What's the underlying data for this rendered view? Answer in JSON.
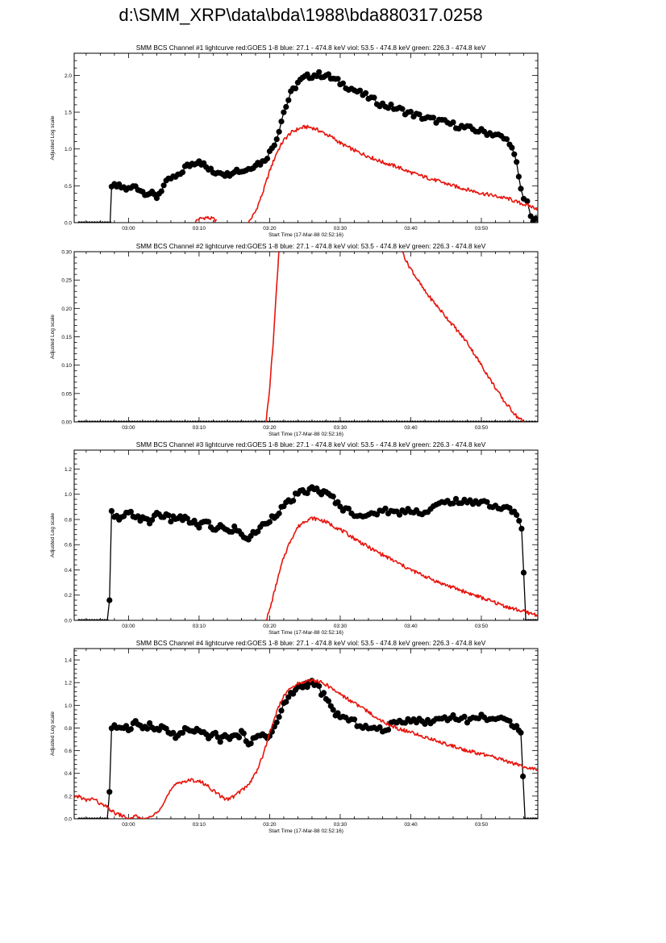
{
  "page": {
    "title": "d:\\SMM_XRP\\data\\bda\\1988\\bda880317.0258"
  },
  "colors": {
    "black_series": "#000000",
    "red_series": "#e8140c",
    "axis": "#000000"
  },
  "chart_data": [
    {
      "type": "line",
      "title": "SMM BCS Channel #1 lightcurve  red:GOES 1-8  blue: 27.1 - 474.8 keV  viol: 53.5 - 474.8 keV  green: 226.3 - 474.8 keV",
      "xlabel": "Start Time (17-Mar-88 02:52:16)",
      "ylabel": "Adjusted Log scale",
      "xlim": [
        52.3,
        118.0
      ],
      "ylim": [
        0,
        2.3
      ],
      "xticks": [
        {
          "value": 60,
          "label": "03:00"
        },
        {
          "value": 70,
          "label": "03:10"
        },
        {
          "value": 80,
          "label": "03:20"
        },
        {
          "value": 90,
          "label": "03:30"
        },
        {
          "value": 100,
          "label": "03:40"
        },
        {
          "value": 110,
          "label": "03:50"
        }
      ],
      "yticks": [
        {
          "value": 0,
          "label": "0.0"
        },
        {
          "value": 0.5,
          "label": "0.5"
        },
        {
          "value": 1.0,
          "label": "1.0"
        },
        {
          "value": 1.5,
          "label": "1.5"
        },
        {
          "value": 2.0,
          "label": "2.0"
        }
      ],
      "series": [
        {
          "name": "BCS Channel #1 (black dots)",
          "color": "black",
          "markers": true,
          "x": [
            53,
            57.4,
            57.6,
            58,
            59,
            60,
            61,
            62,
            63,
            64,
            65,
            66,
            67,
            68,
            69,
            70,
            71,
            72,
            73,
            74,
            75,
            76,
            77,
            78,
            79,
            80,
            81,
            82,
            83,
            84,
            85,
            86,
            87,
            88,
            89,
            90,
            92,
            94,
            96,
            98,
            100,
            102,
            104,
            106,
            108,
            110,
            112,
            114,
            115,
            115.6,
            116,
            116.5,
            117,
            118
          ],
          "y": [
            0.0,
            0.0,
            0.45,
            0.5,
            0.48,
            0.45,
            0.5,
            0.42,
            0.4,
            0.35,
            0.5,
            0.6,
            0.62,
            0.75,
            0.8,
            0.85,
            0.75,
            0.68,
            0.7,
            0.65,
            0.72,
            0.7,
            0.73,
            0.8,
            0.82,
            0.95,
            1.15,
            1.5,
            1.75,
            1.9,
            1.97,
            2.0,
            2.01,
            2.0,
            1.95,
            1.9,
            1.8,
            1.7,
            1.6,
            1.55,
            1.48,
            1.42,
            1.38,
            1.33,
            1.28,
            1.24,
            1.2,
            1.1,
            0.8,
            0.45,
            0.35,
            0.3,
            0.05,
            0.0
          ]
        },
        {
          "name": "GOES 1-8 (red)",
          "color": "red",
          "markers": false,
          "x": [
            69.5,
            70,
            71,
            72,
            72.5,
            null,
            77,
            78,
            79,
            80,
            81,
            82,
            83,
            84,
            85,
            86,
            87,
            88,
            89,
            90,
            92,
            94,
            96,
            98,
            100,
            102,
            104,
            106,
            108,
            110,
            112,
            114,
            115,
            116,
            117,
            118
          ],
          "y": [
            0.02,
            0.05,
            0.07,
            0.05,
            0.02,
            null,
            0.0,
            0.15,
            0.4,
            0.7,
            0.95,
            1.12,
            1.22,
            1.27,
            1.3,
            1.29,
            1.25,
            1.2,
            1.15,
            1.08,
            0.98,
            0.9,
            0.82,
            0.76,
            0.68,
            0.62,
            0.56,
            0.5,
            0.45,
            0.4,
            0.36,
            0.32,
            0.28,
            0.25,
            0.22,
            0.19
          ]
        }
      ]
    },
    {
      "type": "line",
      "title": "SMM BCS Channel #2 lightcurve  red:GOES 1-8  blue: 27.1 - 474.8 keV  viol: 53.5 - 474.8 keV  green: 226.3 - 474.8 keV",
      "xlabel": "Start Time (17-Mar-88 02:52:16)",
      "ylabel": "Adjusted Log scale",
      "xlim": [
        52.3,
        118.0
      ],
      "ylim": [
        0,
        0.3
      ],
      "xticks": [
        {
          "value": 60,
          "label": "03:00"
        },
        {
          "value": 70,
          "label": "03:10"
        },
        {
          "value": 80,
          "label": "03:20"
        },
        {
          "value": 90,
          "label": "03:30"
        },
        {
          "value": 100,
          "label": "03:40"
        },
        {
          "value": 110,
          "label": "03:50"
        }
      ],
      "yticks": [
        {
          "value": 0,
          "label": "0.00"
        },
        {
          "value": 0.05,
          "label": "0.05"
        },
        {
          "value": 0.1,
          "label": "0.10"
        },
        {
          "value": 0.15,
          "label": "0.15"
        },
        {
          "value": 0.2,
          "label": "0.20"
        },
        {
          "value": 0.25,
          "label": "0.25"
        },
        {
          "value": 0.3,
          "label": "0.30"
        }
      ],
      "series": [
        {
          "name": "BCS Channel #2 (black dots)",
          "color": "black",
          "markers": true,
          "x": [
            53,
            56,
            59,
            62,
            65,
            68,
            71,
            74,
            77,
            80,
            83,
            86,
            89,
            92,
            95,
            98,
            101,
            104,
            107,
            110,
            113,
            116,
            118
          ],
          "y": [
            0,
            0,
            0,
            0,
            0,
            0,
            0,
            0,
            0,
            0,
            0,
            0,
            0,
            0,
            0,
            0,
            0,
            0,
            0,
            0,
            0,
            0,
            0
          ]
        },
        {
          "name": "GOES 1-8 (red)",
          "color": "red",
          "markers": false,
          "x": [
            79.5,
            80,
            80.5,
            81,
            81.3,
            null,
            98.8,
            99.5,
            100,
            101,
            102,
            103,
            104,
            105,
            106,
            107,
            108,
            109,
            110,
            111,
            112,
            113,
            114,
            115,
            116
          ],
          "y": [
            0.0,
            0.06,
            0.14,
            0.24,
            0.3,
            null,
            0.3,
            0.28,
            0.27,
            0.25,
            0.23,
            0.215,
            0.2,
            0.185,
            0.17,
            0.155,
            0.14,
            0.12,
            0.1,
            0.08,
            0.06,
            0.04,
            0.025,
            0.01,
            0.0
          ]
        }
      ]
    },
    {
      "type": "line",
      "title": "SMM BCS Channel #3 lightcurve  red:GOES 1-8  blue: 27.1 - 474.8 keV  viol: 53.5 - 474.8 keV  green: 226.3 - 474.8 keV",
      "xlabel": "Start Time (17-Mar-88 02:52:16)",
      "ylabel": "Adjusted Log scale",
      "xlim": [
        52.3,
        118.0
      ],
      "ylim": [
        0,
        1.35
      ],
      "xticks": [
        {
          "value": 60,
          "label": "03:00"
        },
        {
          "value": 70,
          "label": "03:10"
        },
        {
          "value": 80,
          "label": "03:20"
        },
        {
          "value": 90,
          "label": "03:30"
        },
        {
          "value": 100,
          "label": "03:40"
        },
        {
          "value": 110,
          "label": "03:50"
        }
      ],
      "yticks": [
        {
          "value": 0,
          "label": "0.0"
        },
        {
          "value": 0.2,
          "label": "0.2"
        },
        {
          "value": 0.4,
          "label": "0.4"
        },
        {
          "value": 0.6,
          "label": "0.6"
        },
        {
          "value": 0.8,
          "label": "0.8"
        },
        {
          "value": 1.0,
          "label": "1.0"
        },
        {
          "value": 1.2,
          "label": "1.2"
        }
      ],
      "series": [
        {
          "name": "BCS Channel #3 (black dots)",
          "color": "black",
          "markers": true,
          "x": [
            53,
            57,
            57.3,
            57.6,
            58,
            59,
            60,
            61,
            62,
            63,
            64,
            65,
            66,
            67,
            68,
            69,
            70,
            71,
            72,
            73,
            74,
            75,
            76,
            77,
            78,
            79,
            80,
            81,
            82,
            83,
            84,
            85,
            86,
            87,
            88,
            89,
            90,
            92,
            94,
            96,
            98,
            100,
            102,
            104,
            106,
            108,
            110,
            112,
            114,
            115,
            115.7,
            116.3,
            117,
            118
          ],
          "y": [
            0.0,
            0.0,
            0.15,
            0.85,
            0.82,
            0.8,
            0.85,
            0.83,
            0.8,
            0.78,
            0.85,
            0.83,
            0.8,
            0.82,
            0.8,
            0.78,
            0.75,
            0.78,
            0.72,
            0.75,
            0.7,
            0.73,
            0.68,
            0.65,
            0.7,
            0.75,
            0.8,
            0.85,
            0.9,
            0.95,
            1.0,
            1.02,
            1.04,
            1.03,
            1.0,
            0.97,
            0.9,
            0.85,
            0.82,
            0.88,
            0.85,
            0.88,
            0.85,
            0.92,
            0.95,
            0.93,
            0.95,
            0.9,
            0.88,
            0.85,
            0.72,
            0.0,
            0.0,
            0.0
          ]
        },
        {
          "name": "GOES 1-8 (red)",
          "color": "red",
          "markers": false,
          "x": [
            79.5,
            80,
            81,
            82,
            83,
            84,
            85,
            86,
            87,
            88,
            89,
            90,
            92,
            94,
            96,
            98,
            100,
            102,
            104,
            106,
            108,
            110,
            112,
            114,
            116,
            118
          ],
          "y": [
            0.0,
            0.08,
            0.3,
            0.5,
            0.64,
            0.74,
            0.79,
            0.81,
            0.8,
            0.78,
            0.75,
            0.72,
            0.65,
            0.58,
            0.52,
            0.46,
            0.4,
            0.35,
            0.3,
            0.26,
            0.22,
            0.18,
            0.14,
            0.1,
            0.07,
            0.04
          ]
        }
      ]
    },
    {
      "type": "line",
      "title": "SMM BCS Channel #4 lightcurve  red:GOES 1-8  blue: 27.1 - 474.8 keV  viol: 53.5 - 474.8 keV  green: 226.3 - 474.8 keV",
      "xlabel": "Start Time (17-Mar-88 02:52:16)",
      "ylabel": "Adjusted Log scale",
      "xlim": [
        52.3,
        118.0
      ],
      "ylim": [
        0,
        1.5
      ],
      "xticks": [
        {
          "value": 60,
          "label": "03:00"
        },
        {
          "value": 70,
          "label": "03:10"
        },
        {
          "value": 80,
          "label": "03:20"
        },
        {
          "value": 90,
          "label": "03:30"
        },
        {
          "value": 100,
          "label": "03:40"
        },
        {
          "value": 110,
          "label": "03:50"
        }
      ],
      "yticks": [
        {
          "value": 0,
          "label": "0.0"
        },
        {
          "value": 0.2,
          "label": "0.2"
        },
        {
          "value": 0.4,
          "label": "0.4"
        },
        {
          "value": 0.6,
          "label": "0.6"
        },
        {
          "value": 0.8,
          "label": "0.8"
        },
        {
          "value": 1.0,
          "label": "1.0"
        },
        {
          "value": 1.2,
          "label": "1.2"
        },
        {
          "value": 1.4,
          "label": "1.4"
        }
      ],
      "series": [
        {
          "name": "BCS Channel #4 (black dots)",
          "color": "black",
          "markers": true,
          "x": [
            53,
            57,
            57.3,
            57.6,
            58,
            59,
            60,
            61,
            62,
            63,
            64,
            65,
            66,
            67,
            68,
            69,
            70,
            71,
            72,
            73,
            74,
            75,
            76,
            77,
            78,
            79,
            80,
            81,
            82,
            83,
            84,
            85,
            86,
            87,
            88,
            89,
            90,
            92,
            94,
            96,
            98,
            100,
            102,
            104,
            106,
            108,
            110,
            112,
            114,
            115,
            115.6,
            116.2,
            117,
            118
          ],
          "y": [
            0.0,
            0.0,
            0.22,
            0.78,
            0.8,
            0.82,
            0.8,
            0.85,
            0.8,
            0.82,
            0.78,
            0.8,
            0.75,
            0.72,
            0.78,
            0.75,
            0.8,
            0.72,
            0.75,
            0.7,
            0.73,
            0.72,
            0.75,
            0.68,
            0.7,
            0.75,
            0.72,
            0.85,
            1.0,
            1.1,
            1.15,
            1.18,
            1.2,
            1.15,
            1.05,
            0.95,
            0.9,
            0.85,
            0.8,
            0.78,
            0.85,
            0.88,
            0.85,
            0.88,
            0.9,
            0.87,
            0.9,
            0.88,
            0.85,
            0.82,
            0.78,
            0.0,
            0.0,
            0.0
          ]
        },
        {
          "name": "GOES 1-8 (red)",
          "color": "red",
          "markers": false,
          "x": [
            52.3,
            53,
            54,
            55,
            56,
            57,
            58,
            59,
            60,
            61,
            62,
            63,
            64,
            65,
            66,
            67,
            68,
            69,
            70,
            71,
            72,
            73,
            74,
            75,
            76,
            77,
            78,
            79,
            80,
            81,
            82,
            83,
            84,
            85,
            86,
            87,
            88,
            89,
            90,
            92,
            94,
            96,
            98,
            100,
            102,
            104,
            106,
            108,
            110,
            112,
            114,
            116,
            117,
            118
          ],
          "y": [
            0.18,
            0.2,
            0.16,
            0.18,
            0.13,
            0.1,
            0.05,
            0.03,
            0.0,
            0.02,
            0.0,
            0.01,
            0.05,
            0.15,
            0.25,
            0.32,
            0.33,
            0.34,
            0.33,
            0.3,
            0.25,
            0.2,
            0.17,
            0.2,
            0.25,
            0.3,
            0.4,
            0.55,
            0.75,
            0.95,
            1.08,
            1.15,
            1.19,
            1.21,
            1.22,
            1.21,
            1.18,
            1.14,
            1.1,
            1.02,
            0.94,
            0.86,
            0.8,
            0.76,
            0.72,
            0.68,
            0.64,
            0.6,
            0.57,
            0.54,
            0.5,
            0.46,
            0.44,
            0.43
          ]
        }
      ]
    }
  ]
}
